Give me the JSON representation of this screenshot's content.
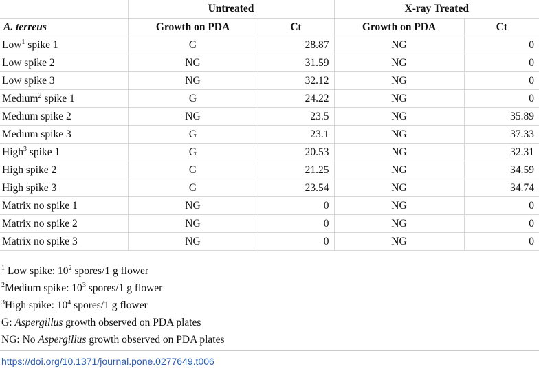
{
  "table": {
    "group_headers": {
      "blank": "",
      "untreated": "Untreated",
      "xray": "X-ray Treated"
    },
    "column_headers": {
      "first": "A. terreus",
      "untreated_growth": "Growth on PDA",
      "untreated_ct": "Ct",
      "xray_growth": "Growth on PDA",
      "xray_ct": "Ct"
    },
    "rows": [
      {
        "label": "Low",
        "sup": "1",
        "label_tail": " spike 1",
        "u_growth": "G",
        "u_ct": "28.87",
        "x_growth": "NG",
        "x_ct": "0"
      },
      {
        "label": "Low spike 2",
        "sup": "",
        "label_tail": "",
        "u_growth": "NG",
        "u_ct": "31.59",
        "x_growth": "NG",
        "x_ct": "0"
      },
      {
        "label": "Low spike 3",
        "sup": "",
        "label_tail": "",
        "u_growth": "NG",
        "u_ct": "32.12",
        "x_growth": "NG",
        "x_ct": "0"
      },
      {
        "label": "Medium",
        "sup": "2",
        "label_tail": " spike 1",
        "u_growth": "G",
        "u_ct": "24.22",
        "x_growth": "NG",
        "x_ct": "0"
      },
      {
        "label": "Medium spike 2",
        "sup": "",
        "label_tail": "",
        "u_growth": "NG",
        "u_ct": "23.5",
        "x_growth": "NG",
        "x_ct": "35.89"
      },
      {
        "label": "Medium spike 3",
        "sup": "",
        "label_tail": "",
        "u_growth": "G",
        "u_ct": "23.1",
        "x_growth": "NG",
        "x_ct": "37.33"
      },
      {
        "label": "High",
        "sup": "3",
        "label_tail": " spike 1",
        "u_growth": "G",
        "u_ct": "20.53",
        "x_growth": "NG",
        "x_ct": "32.31"
      },
      {
        "label": "High spike 2",
        "sup": "",
        "label_tail": "",
        "u_growth": "G",
        "u_ct": "21.25",
        "x_growth": "NG",
        "x_ct": "34.59"
      },
      {
        "label": "High spike 3",
        "sup": "",
        "label_tail": "",
        "u_growth": "G",
        "u_ct": "23.54",
        "x_growth": "NG",
        "x_ct": "34.74"
      },
      {
        "label": "Matrix no spike 1",
        "sup": "",
        "label_tail": "",
        "u_growth": "NG",
        "u_ct": "0",
        "x_growth": "NG",
        "x_ct": "0"
      },
      {
        "label": "Matrix no spike 2",
        "sup": "",
        "label_tail": "",
        "u_growth": "NG",
        "u_ct": "0",
        "x_growth": "NG",
        "x_ct": "0"
      },
      {
        "label": "Matrix no spike 3",
        "sup": "",
        "label_tail": "",
        "u_growth": "NG",
        "u_ct": "0",
        "x_growth": "NG",
        "x_ct": "0"
      }
    ]
  },
  "footnotes": {
    "n1": {
      "sup": "1",
      "text_a": " Low spike: 10",
      "exp": "2",
      "text_b": " spores/1 g flower"
    },
    "n2": {
      "sup": "2",
      "text_a": "Medium spike: 10",
      "exp": "3",
      "text_b": " spores/1 g flower"
    },
    "n3": {
      "sup": "3",
      "text_a": "High spike: 10",
      "exp": "4",
      "text_b": " spores/1 g flower"
    },
    "g": {
      "prefix": "G: ",
      "italic": "Aspergillus",
      "suffix": " growth observed on PDA plates"
    },
    "ng": {
      "prefix": "NG: No ",
      "italic": "Aspergillus",
      "suffix": " growth observed on PDA plates"
    }
  },
  "doi": "https://doi.org/10.1371/journal.pone.0277649.t006",
  "colors": {
    "text": "#111111",
    "rule": "#d6d6d6",
    "link": "#2a5db0"
  }
}
